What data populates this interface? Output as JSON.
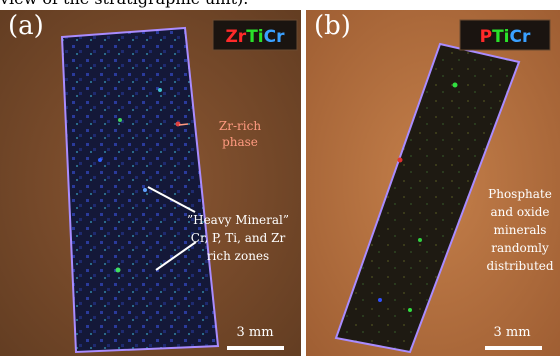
{
  "caption_fragment": "view of the stratigraphic unit).",
  "panels": [
    {
      "label": "(a)",
      "legend": [
        "Zr",
        "Ti",
        "Cr"
      ],
      "annotations": [
        [
          "Zr-rich",
          "phase"
        ],
        [
          "”Heavy Mineral”",
          "Cr, P, Ti, and Zr",
          "rich zones"
        ]
      ],
      "scale_bar": "3 mm"
    },
    {
      "label": "(b)",
      "legend": [
        "P",
        "Ti",
        "Cr"
      ],
      "annotations": [
        [
          "Phosphate",
          "and oxide",
          "minerals",
          "randomly",
          "distributed"
        ]
      ],
      "scale_bar": "3 mm"
    }
  ]
}
